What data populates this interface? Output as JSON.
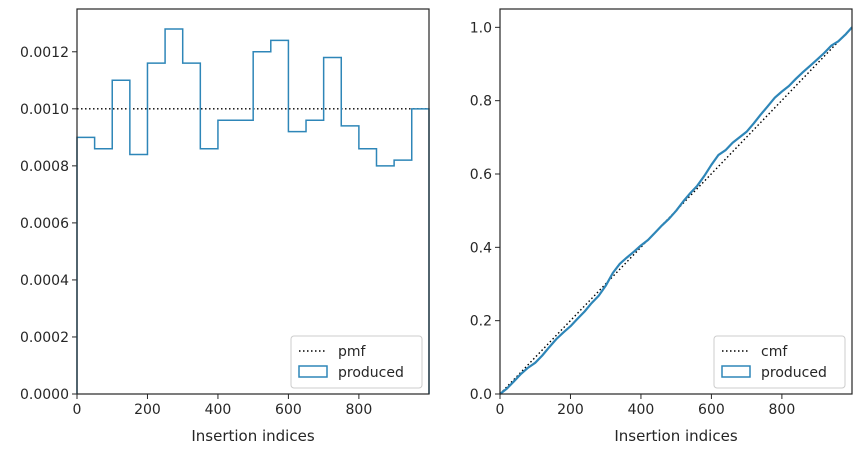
{
  "chart_data": [
    {
      "type": "step",
      "xlabel": "Insertion indices",
      "ylabel": "",
      "xlim": [
        0,
        999
      ],
      "ylim": [
        0,
        0.00135
      ],
      "xticks": [
        0,
        200,
        400,
        600,
        800
      ],
      "yticks": [
        0,
        0.0002,
        0.0004,
        0.0006,
        0.0008,
        0.001,
        0.0012
      ],
      "ytick_labels": [
        "0.0000",
        "0.0002",
        "0.0004",
        "0.0006",
        "0.0008",
        "0.0010",
        "0.0012"
      ],
      "xtick_labels": [
        "0",
        "200",
        "400",
        "600",
        "800"
      ],
      "legend_position": "lower-right",
      "reference": {
        "name": "pmf",
        "style": "dotted",
        "color": "#000000",
        "y": 0.001
      },
      "series": [
        {
          "name": "produced",
          "color": "#2e86b8",
          "bin_edges": [
            0,
            50,
            100,
            150,
            200,
            250,
            300,
            350,
            400,
            450,
            500,
            550,
            600,
            650,
            700,
            750,
            800,
            850,
            900,
            950,
            999
          ],
          "values": [
            0.0009,
            0.00086,
            0.0011,
            0.00084,
            0.00116,
            0.00128,
            0.00116,
            0.00086,
            0.00096,
            0.00096,
            0.0012,
            0.00124,
            0.00092,
            0.00096,
            0.00118,
            0.00094,
            0.00086,
            0.0008,
            0.00082,
            0.001
          ]
        }
      ]
    },
    {
      "type": "line",
      "xlabel": "Insertion indices",
      "ylabel": "",
      "xlim": [
        0,
        999
      ],
      "ylim": [
        0,
        1.05
      ],
      "xticks": [
        0,
        200,
        400,
        600,
        800
      ],
      "yticks": [
        0,
        0.2,
        0.4,
        0.6,
        0.8,
        1.0
      ],
      "ytick_labels": [
        "0.0",
        "0.2",
        "0.4",
        "0.6",
        "0.8",
        "1.0"
      ],
      "xtick_labels": [
        "0",
        "200",
        "400",
        "600",
        "800"
      ],
      "legend_position": "lower-right",
      "reference": {
        "name": "cmf",
        "style": "dotted",
        "color": "#000000",
        "points": [
          [
            0,
            0
          ],
          [
            999,
            1.0
          ]
        ]
      },
      "series": [
        {
          "name": "produced",
          "color": "#2e86b8",
          "x": [
            0,
            20,
            40,
            60,
            80,
            100,
            120,
            140,
            160,
            180,
            200,
            220,
            240,
            260,
            280,
            300,
            320,
            340,
            360,
            380,
            400,
            420,
            440,
            460,
            480,
            500,
            520,
            540,
            560,
            580,
            600,
            620,
            640,
            660,
            680,
            700,
            720,
            740,
            760,
            780,
            800,
            820,
            840,
            860,
            880,
            900,
            920,
            940,
            960,
            980,
            999
          ],
          "y": [
            0,
            0.015,
            0.035,
            0.055,
            0.072,
            0.085,
            0.105,
            0.128,
            0.15,
            0.168,
            0.185,
            0.205,
            0.225,
            0.248,
            0.268,
            0.295,
            0.33,
            0.355,
            0.372,
            0.388,
            0.405,
            0.42,
            0.44,
            0.46,
            0.478,
            0.5,
            0.525,
            0.548,
            0.568,
            0.595,
            0.625,
            0.652,
            0.665,
            0.685,
            0.7,
            0.715,
            0.738,
            0.762,
            0.785,
            0.808,
            0.825,
            0.84,
            0.86,
            0.878,
            0.895,
            0.912,
            0.93,
            0.95,
            0.962,
            0.98,
            1.0
          ]
        }
      ]
    }
  ]
}
